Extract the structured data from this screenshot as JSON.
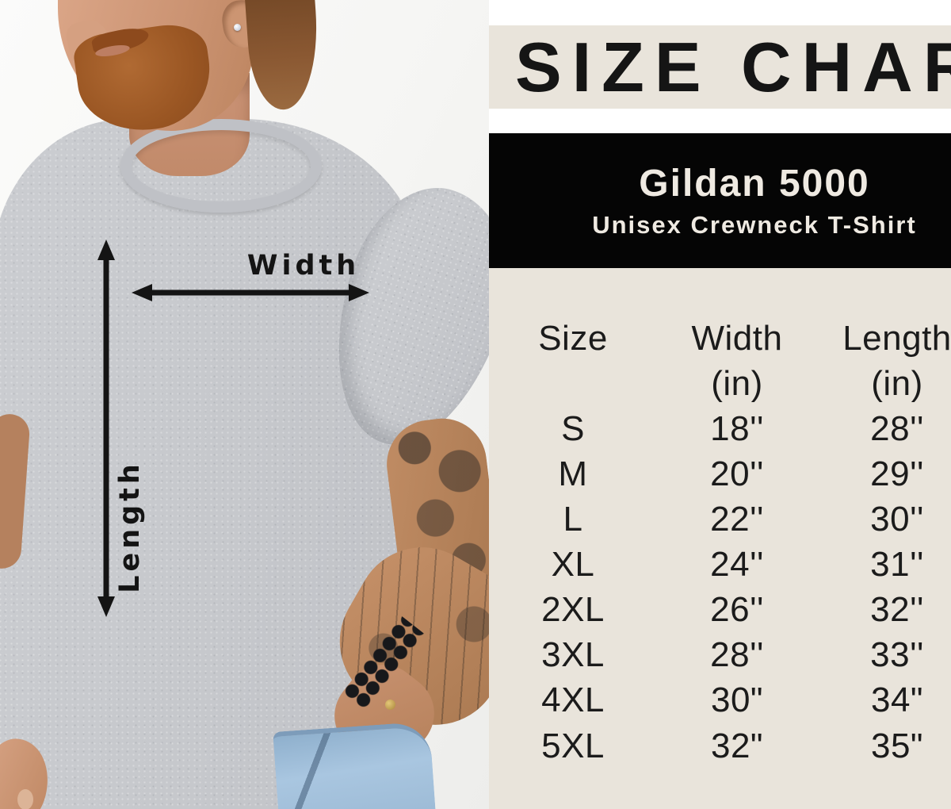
{
  "title": "SIZE CHART",
  "banner": {
    "line1": "Gildan 5000",
    "line2": "Unisex Crewneck T-Shirt"
  },
  "photo": {
    "width_label": "Width",
    "length_label": "Length"
  },
  "size_chart": {
    "columns": [
      {
        "label": "Size",
        "unit": ""
      },
      {
        "label": "Width",
        "unit": "(in)"
      },
      {
        "label": "Length",
        "unit": "(in)"
      }
    ],
    "rows": [
      {
        "size": "S",
        "width": "18''",
        "length": "28''"
      },
      {
        "size": "M",
        "width": "20''",
        "length": "29''"
      },
      {
        "size": "L",
        "width": "22''",
        "length": "30''"
      },
      {
        "size": "XL",
        "width": "24''",
        "length": "31''"
      },
      {
        "size": "2XL",
        "width": "26''",
        "length": "32''"
      },
      {
        "size": "3XL",
        "width": "28''",
        "length": "33''"
      },
      {
        "size": "4XL",
        "width": "30\"",
        "length": "34\""
      },
      {
        "size": "5XL",
        "width": "32\"",
        "length": "35\""
      }
    ]
  },
  "colors": {
    "cream_band": "#E9E4DB",
    "banner_black": "#050505",
    "banner_text": "#EFEAE2",
    "text_black": "#1B1B1B",
    "shirt_gray": "#C6C8CC",
    "annotation_black": "#141414"
  },
  "chart_data": {
    "type": "table",
    "title": "SIZE CHART",
    "subtitle": "Gildan 5000 Unisex Crewneck T-Shirt",
    "columns": [
      "Size",
      "Width (in)",
      "Length (in)"
    ],
    "rows": [
      [
        "S",
        "18''",
        "28''"
      ],
      [
        "M",
        "20''",
        "29''"
      ],
      [
        "L",
        "22''",
        "30''"
      ],
      [
        "XL",
        "24''",
        "31''"
      ],
      [
        "2XL",
        "26''",
        "32''"
      ],
      [
        "3XL",
        "28''",
        "33''"
      ],
      [
        "4XL",
        "30\"",
        "34\""
      ],
      [
        "5XL",
        "32\"",
        "35\""
      ]
    ],
    "annotations": [
      "Width",
      "Length"
    ]
  }
}
